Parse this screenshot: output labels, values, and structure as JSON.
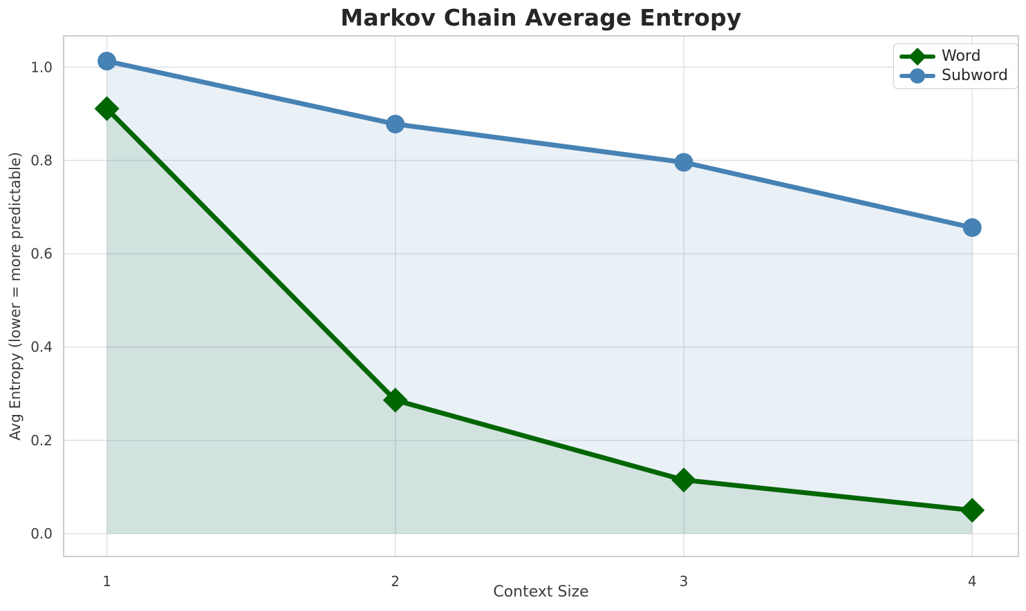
{
  "figure": {
    "title": "Markov Chain Average Entropy"
  },
  "chart_data": {
    "type": "line",
    "title": "Markov Chain Average Entropy",
    "xlabel": "Context Size",
    "ylabel": "Avg Entropy (lower = more predictable)",
    "x": [
      1,
      2,
      3,
      4
    ],
    "series": [
      {
        "name": "Word",
        "values": [
          0.911,
          0.286,
          0.115,
          0.05
        ],
        "color": "#006602",
        "fill": "rgba(0,102,2,0.10)",
        "marker": "diamond",
        "area_to_zero": true
      },
      {
        "name": "Subword",
        "values": [
          1.013,
          0.878,
          0.796,
          0.656
        ],
        "color": "#4682b4",
        "fill": "rgba(70,130,180,0.12)",
        "marker": "circle",
        "area_to_zero": true
      }
    ],
    "xticks": [
      1,
      2,
      3,
      4
    ],
    "xtick_labels": [
      "1",
      "2",
      "3",
      "4"
    ],
    "yticks": [
      0.0,
      0.2,
      0.4,
      0.6,
      0.8,
      1.0
    ],
    "ytick_labels": [
      "0.0",
      "0.2",
      "0.4",
      "0.6",
      "0.8",
      "1.0"
    ],
    "xlim": [
      0.85,
      4.16
    ],
    "ylim": [
      -0.049,
      1.067
    ],
    "grid": true,
    "legend": {
      "position": "upper right",
      "entries": [
        "Word",
        "Subword"
      ]
    },
    "style": {
      "grid_color": "#e2e2e6",
      "spine_color": "#cdcdcd",
      "title_color": "#262626",
      "tick_color": "#3c3c3c",
      "label_color": "#3c3c3c",
      "legend_border": "#cccccc",
      "legend_bg": "rgba(255,255,255,0.85)",
      "background": "#ffffff",
      "line_width": 7
    }
  }
}
